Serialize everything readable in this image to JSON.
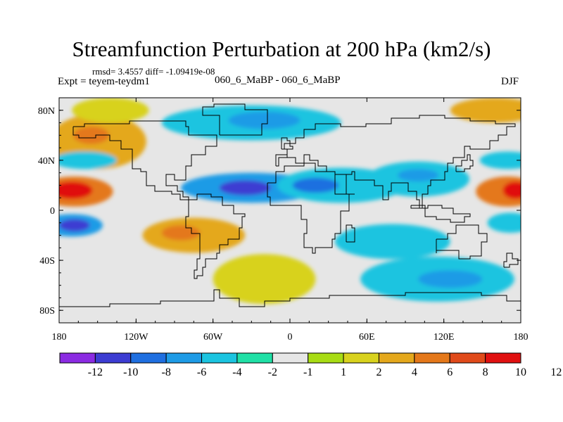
{
  "header": {
    "title": "Streamfunction Perturbation at 200 hPa (km2/s)",
    "stats": "rmsd= 3.4557 diff= -1.09419e-08",
    "experiment": "Expt = teyem-teydm1",
    "cases": "060_6_MaBP - 060_6_MaBP",
    "season": "DJF"
  },
  "colors": {
    "palette": [
      "#8b2be2",
      "#3c3cd2",
      "#1f6fe0",
      "#1e9be6",
      "#1bc4e0",
      "#20e0a6",
      "#e6e6e6",
      "#a8dc14",
      "#d8d21e",
      "#e4a81c",
      "#e4781a",
      "#e04a1a",
      "#e01010"
    ],
    "coast": "#000000"
  },
  "chart_data": {
    "type": "heatmap",
    "title": "Streamfunction Perturbation at 200 hPa (km2/s)",
    "xlabel": "",
    "ylabel": "",
    "xlim": [
      -180,
      180
    ],
    "ylim": [
      -90,
      90
    ],
    "x_ticks": [
      {
        "value": -180,
        "label": "180"
      },
      {
        "value": -120,
        "label": "120W"
      },
      {
        "value": -60,
        "label": "60W"
      },
      {
        "value": 0,
        "label": "0"
      },
      {
        "value": 60,
        "label": "60E"
      },
      {
        "value": 120,
        "label": "120E"
      },
      {
        "value": 180,
        "label": "180"
      }
    ],
    "y_ticks": [
      {
        "value": 80,
        "label": "80N"
      },
      {
        "value": 40,
        "label": "40N"
      },
      {
        "value": 0,
        "label": "0"
      },
      {
        "value": -40,
        "label": "40S"
      },
      {
        "value": -80,
        "label": "80S"
      }
    ],
    "levels": [
      "-12",
      "-10",
      "-8",
      "-6",
      "-4",
      "-2",
      "-1",
      "1",
      "2",
      "4",
      "6",
      "8",
      "10",
      "12"
    ],
    "regions": [
      {
        "name": "west-pacific-equatorial-max",
        "lon": -168,
        "lat": 15,
        "rlon": 30,
        "rlat": 12,
        "level": 6
      },
      {
        "name": "west-pacific-equatorial-max-core",
        "lon": -170,
        "lat": 16,
        "rlon": 16,
        "rlat": 7,
        "level": 12
      },
      {
        "name": "east-pacific-equatorial-max",
        "lon": 170,
        "lat": 15,
        "rlon": 25,
        "rlat": 12,
        "level": 6
      },
      {
        "name": "east-pacific-equatorial-max-core",
        "lon": 176,
        "lat": 16,
        "rlon": 10,
        "rlat": 7,
        "level": 10
      },
      {
        "name": "pacific-midlat-positive",
        "lon": -150,
        "lat": 55,
        "rlon": 38,
        "rlat": 22,
        "level": 4
      },
      {
        "name": "pacific-midlat-positive-core",
        "lon": -155,
        "lat": 60,
        "rlon": 14,
        "rlat": 7,
        "level": 6
      },
      {
        "name": "pacific-40n-negative",
        "lon": -160,
        "lat": 40,
        "rlon": 25,
        "rlat": 7,
        "level": -4
      },
      {
        "name": "north-atlantic-negative",
        "lon": -30,
        "lat": 70,
        "rlon": 70,
        "rlat": 14,
        "level": -4
      },
      {
        "name": "north-atlantic-negative-core",
        "lon": -20,
        "lat": 72,
        "rlon": 28,
        "rlat": 7,
        "level": -6
      },
      {
        "name": "atlantic-tropical-negative",
        "lon": -30,
        "lat": 18,
        "rlon": 55,
        "rlat": 12,
        "level": -6
      },
      {
        "name": "atlantic-tropical-negative-core",
        "lon": -35,
        "lat": 18,
        "rlon": 20,
        "rlat": 6,
        "level": -10
      },
      {
        "name": "indian-tropical-negative",
        "lon": 40,
        "lat": 20,
        "rlon": 50,
        "rlat": 14,
        "level": -4
      },
      {
        "name": "indian-tropical-negative-core",
        "lon": 20,
        "lat": 20,
        "rlon": 18,
        "rlat": 6,
        "level": -8
      },
      {
        "name": "asia-tropical-negative",
        "lon": 100,
        "lat": 25,
        "rlon": 40,
        "rlat": 14,
        "level": -4
      },
      {
        "name": "asia-tropical-negative-core",
        "lon": 100,
        "lat": 28,
        "rlon": 16,
        "rlat": 5,
        "level": -6
      },
      {
        "name": "east-pacific-40n-negative",
        "lon": 170,
        "lat": 40,
        "rlon": 22,
        "rlat": 7,
        "level": -4
      },
      {
        "name": "south-pacific-negative",
        "lon": -170,
        "lat": -12,
        "rlon": 24,
        "rlat": 9,
        "level": -6
      },
      {
        "name": "south-pacific-negative-core",
        "lon": -168,
        "lat": -12,
        "rlon": 12,
        "rlat": 5,
        "level": -10
      },
      {
        "name": "south-pacific-east-negative",
        "lon": 172,
        "lat": -10,
        "rlon": 18,
        "rlat": 8,
        "level": -4
      },
      {
        "name": "south-america-positive",
        "lon": -75,
        "lat": -20,
        "rlon": 40,
        "rlat": 14,
        "level": 4
      },
      {
        "name": "south-america-positive-core",
        "lon": -85,
        "lat": -18,
        "rlon": 15,
        "rlat": 6,
        "level": 6
      },
      {
        "name": "south-atlantic-positive",
        "lon": -20,
        "lat": -55,
        "rlon": 40,
        "rlat": 20,
        "level": 2
      },
      {
        "name": "indian-ocean-south-negative",
        "lon": 80,
        "lat": -25,
        "rlon": 45,
        "rlat": 14,
        "level": -4
      },
      {
        "name": "southern-ocean-negative",
        "lon": 115,
        "lat": -55,
        "rlon": 60,
        "rlat": 18,
        "level": -4
      },
      {
        "name": "southern-ocean-negative-core",
        "lon": 125,
        "lat": -55,
        "rlon": 25,
        "rlat": 7,
        "level": -6
      },
      {
        "name": "arctic-positive-east",
        "lon": 160,
        "lat": 80,
        "rlon": 35,
        "rlat": 10,
        "level": 4
      },
      {
        "name": "arctic-positive-west",
        "lon": -140,
        "lat": 80,
        "rlon": 30,
        "rlat": 10,
        "level": 2
      }
    ]
  }
}
